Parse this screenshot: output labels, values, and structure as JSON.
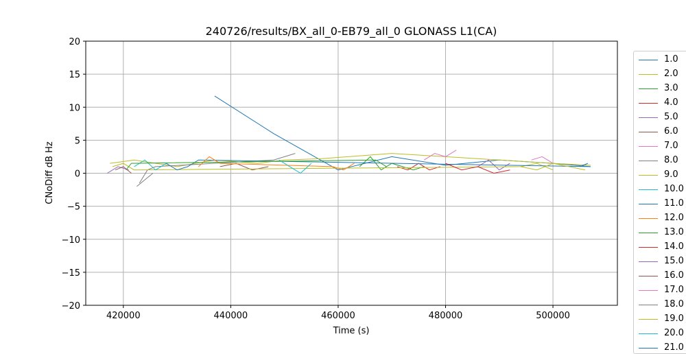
{
  "chart_data": {
    "type": "line",
    "title": "240726/results/BX_all_0-EB79_all_0 GLONASS L1(CA)",
    "xlabel": "Time (s)",
    "ylabel": "CNoDiff dB Hz",
    "xlim": [
      413000,
      512000
    ],
    "ylim": [
      -20,
      20
    ],
    "xticks": [
      420000,
      440000,
      460000,
      480000,
      500000
    ],
    "yticks": [
      -20,
      -15,
      -10,
      -5,
      0,
      5,
      10,
      15,
      20
    ],
    "grid": true,
    "legend_position": "outside-right",
    "series": [
      {
        "name": "1.0",
        "color": "#1f77b4",
        "x": [
          437000,
          448000,
          460000,
          470000,
          480000,
          490000,
          500000,
          507000
        ],
        "y": [
          11.7,
          6,
          0.5,
          2.5,
          1.2,
          2.0,
          1.5,
          1.0
        ]
      },
      {
        "name": "2.0",
        "color": "#bcbd22",
        "x": [
          417500,
          422000,
          430000,
          437000,
          445000,
          450000,
          457000,
          470000,
          480000,
          490000,
          500000,
          507000
        ],
        "y": [
          1.5,
          2.0,
          1.0,
          2.0,
          1.5,
          2.0,
          2.2,
          3.0,
          2.5,
          2.0,
          1.5,
          1.2
        ]
      },
      {
        "name": "3.0",
        "color": "#2ca02c",
        "x": [
          464000,
          466000,
          468000,
          470000,
          472000,
          474000,
          476000
        ],
        "y": [
          1.0,
          2.5,
          0.5,
          1.5,
          1.0,
          0.5,
          1.0
        ]
      },
      {
        "name": "4.0",
        "color": "#d62728",
        "x": [
          471000,
          473000,
          475000,
          477000,
          479000
        ],
        "y": [
          1.0,
          0.5,
          1.5,
          0.5,
          1.0
        ]
      },
      {
        "name": "5.0",
        "color": "#9467bd",
        "x": [
          486000,
          488000,
          490000,
          492000
        ],
        "y": [
          1.0,
          2.0,
          0.5,
          1.5
        ]
      },
      {
        "name": "6.0",
        "color": "#8c564b",
        "x": [
          438000,
          441000,
          444000,
          447000
        ],
        "y": [
          1.0,
          1.5,
          0.5,
          1.0
        ]
      },
      {
        "name": "7.0",
        "color": "#e377c2",
        "x": [
          476000,
          478000,
          480000,
          482000
        ],
        "y": [
          2.0,
          3.0,
          2.5,
          3.5
        ]
      },
      {
        "name": "8.0",
        "color": "#7f7f7f",
        "x": [
          423000,
          424500,
          426000,
          448000,
          452000
        ],
        "y": [
          -1.5,
          0.5,
          1.0,
          2.0,
          3.0
        ]
      },
      {
        "name": "9.0",
        "color": "#bcbd22",
        "x": [
          418000,
          420000,
          422000,
          494000,
          497000,
          500000
        ],
        "y": [
          1.0,
          1.5,
          0.5,
          1.0,
          1.5,
          0.5
        ]
      },
      {
        "name": "10.0",
        "color": "#17becf",
        "x": [
          422000,
          424000,
          426000,
          428000
        ],
        "y": [
          1.0,
          2.0,
          0.5,
          1.5
        ]
      },
      {
        "name": "11.0",
        "color": "#1f77b4",
        "x": [
          428000,
          430000,
          432000,
          434000,
          507000
        ],
        "y": [
          1.5,
          0.5,
          1.0,
          2.0,
          1.0
        ]
      },
      {
        "name": "12.0",
        "color": "#ff7f0e",
        "x": [
          434000,
          436000,
          438000,
          459000,
          461000,
          463000
        ],
        "y": [
          1.0,
          2.5,
          1.5,
          1.0,
          0.5,
          1.5
        ]
      },
      {
        "name": "13.0",
        "color": "#2ca02c",
        "x": [
          420500,
          421500,
          467000,
          469000
        ],
        "y": [
          0.5,
          1.5,
          2.0,
          1.0
        ]
      },
      {
        "name": "14.0",
        "color": "#d62728",
        "x": [
          480000,
          483000,
          486000,
          489000,
          492000
        ],
        "y": [
          1.5,
          0.5,
          1.0,
          0.0,
          0.5
        ]
      },
      {
        "name": "15.0",
        "color": "#9467bd",
        "x": [
          417000,
          419000,
          421000
        ],
        "y": [
          0.0,
          1.0,
          0.5
        ]
      },
      {
        "name": "16.0",
        "color": "#8c564b",
        "x": [
          418500,
          420000,
          421500
        ],
        "y": [
          0.5,
          1.0,
          0.0
        ]
      },
      {
        "name": "17.0",
        "color": "#e377c2",
        "x": [
          496000,
          498000,
          500000
        ],
        "y": [
          2.0,
          2.5,
          1.5
        ]
      },
      {
        "name": "18.0",
        "color": "#7f7f7f",
        "x": [
          422500,
          424000,
          425500
        ],
        "y": [
          -2.0,
          -1.0,
          0.0
        ]
      },
      {
        "name": "19.0",
        "color": "#bcbd22",
        "x": [
          494000,
          497000,
          500000,
          503000,
          506000
        ],
        "y": [
          1.0,
          0.5,
          1.5,
          1.0,
          0.5
        ]
      },
      {
        "name": "20.0",
        "color": "#17becf",
        "x": [
          449000,
          451000,
          453000,
          455000
        ],
        "y": [
          2.0,
          1.0,
          0.0,
          1.5
        ]
      },
      {
        "name": "21.0",
        "color": "#1f77b4",
        "x": [
          505000,
          506500
        ],
        "y": [
          1.0,
          1.5
        ]
      }
    ]
  }
}
